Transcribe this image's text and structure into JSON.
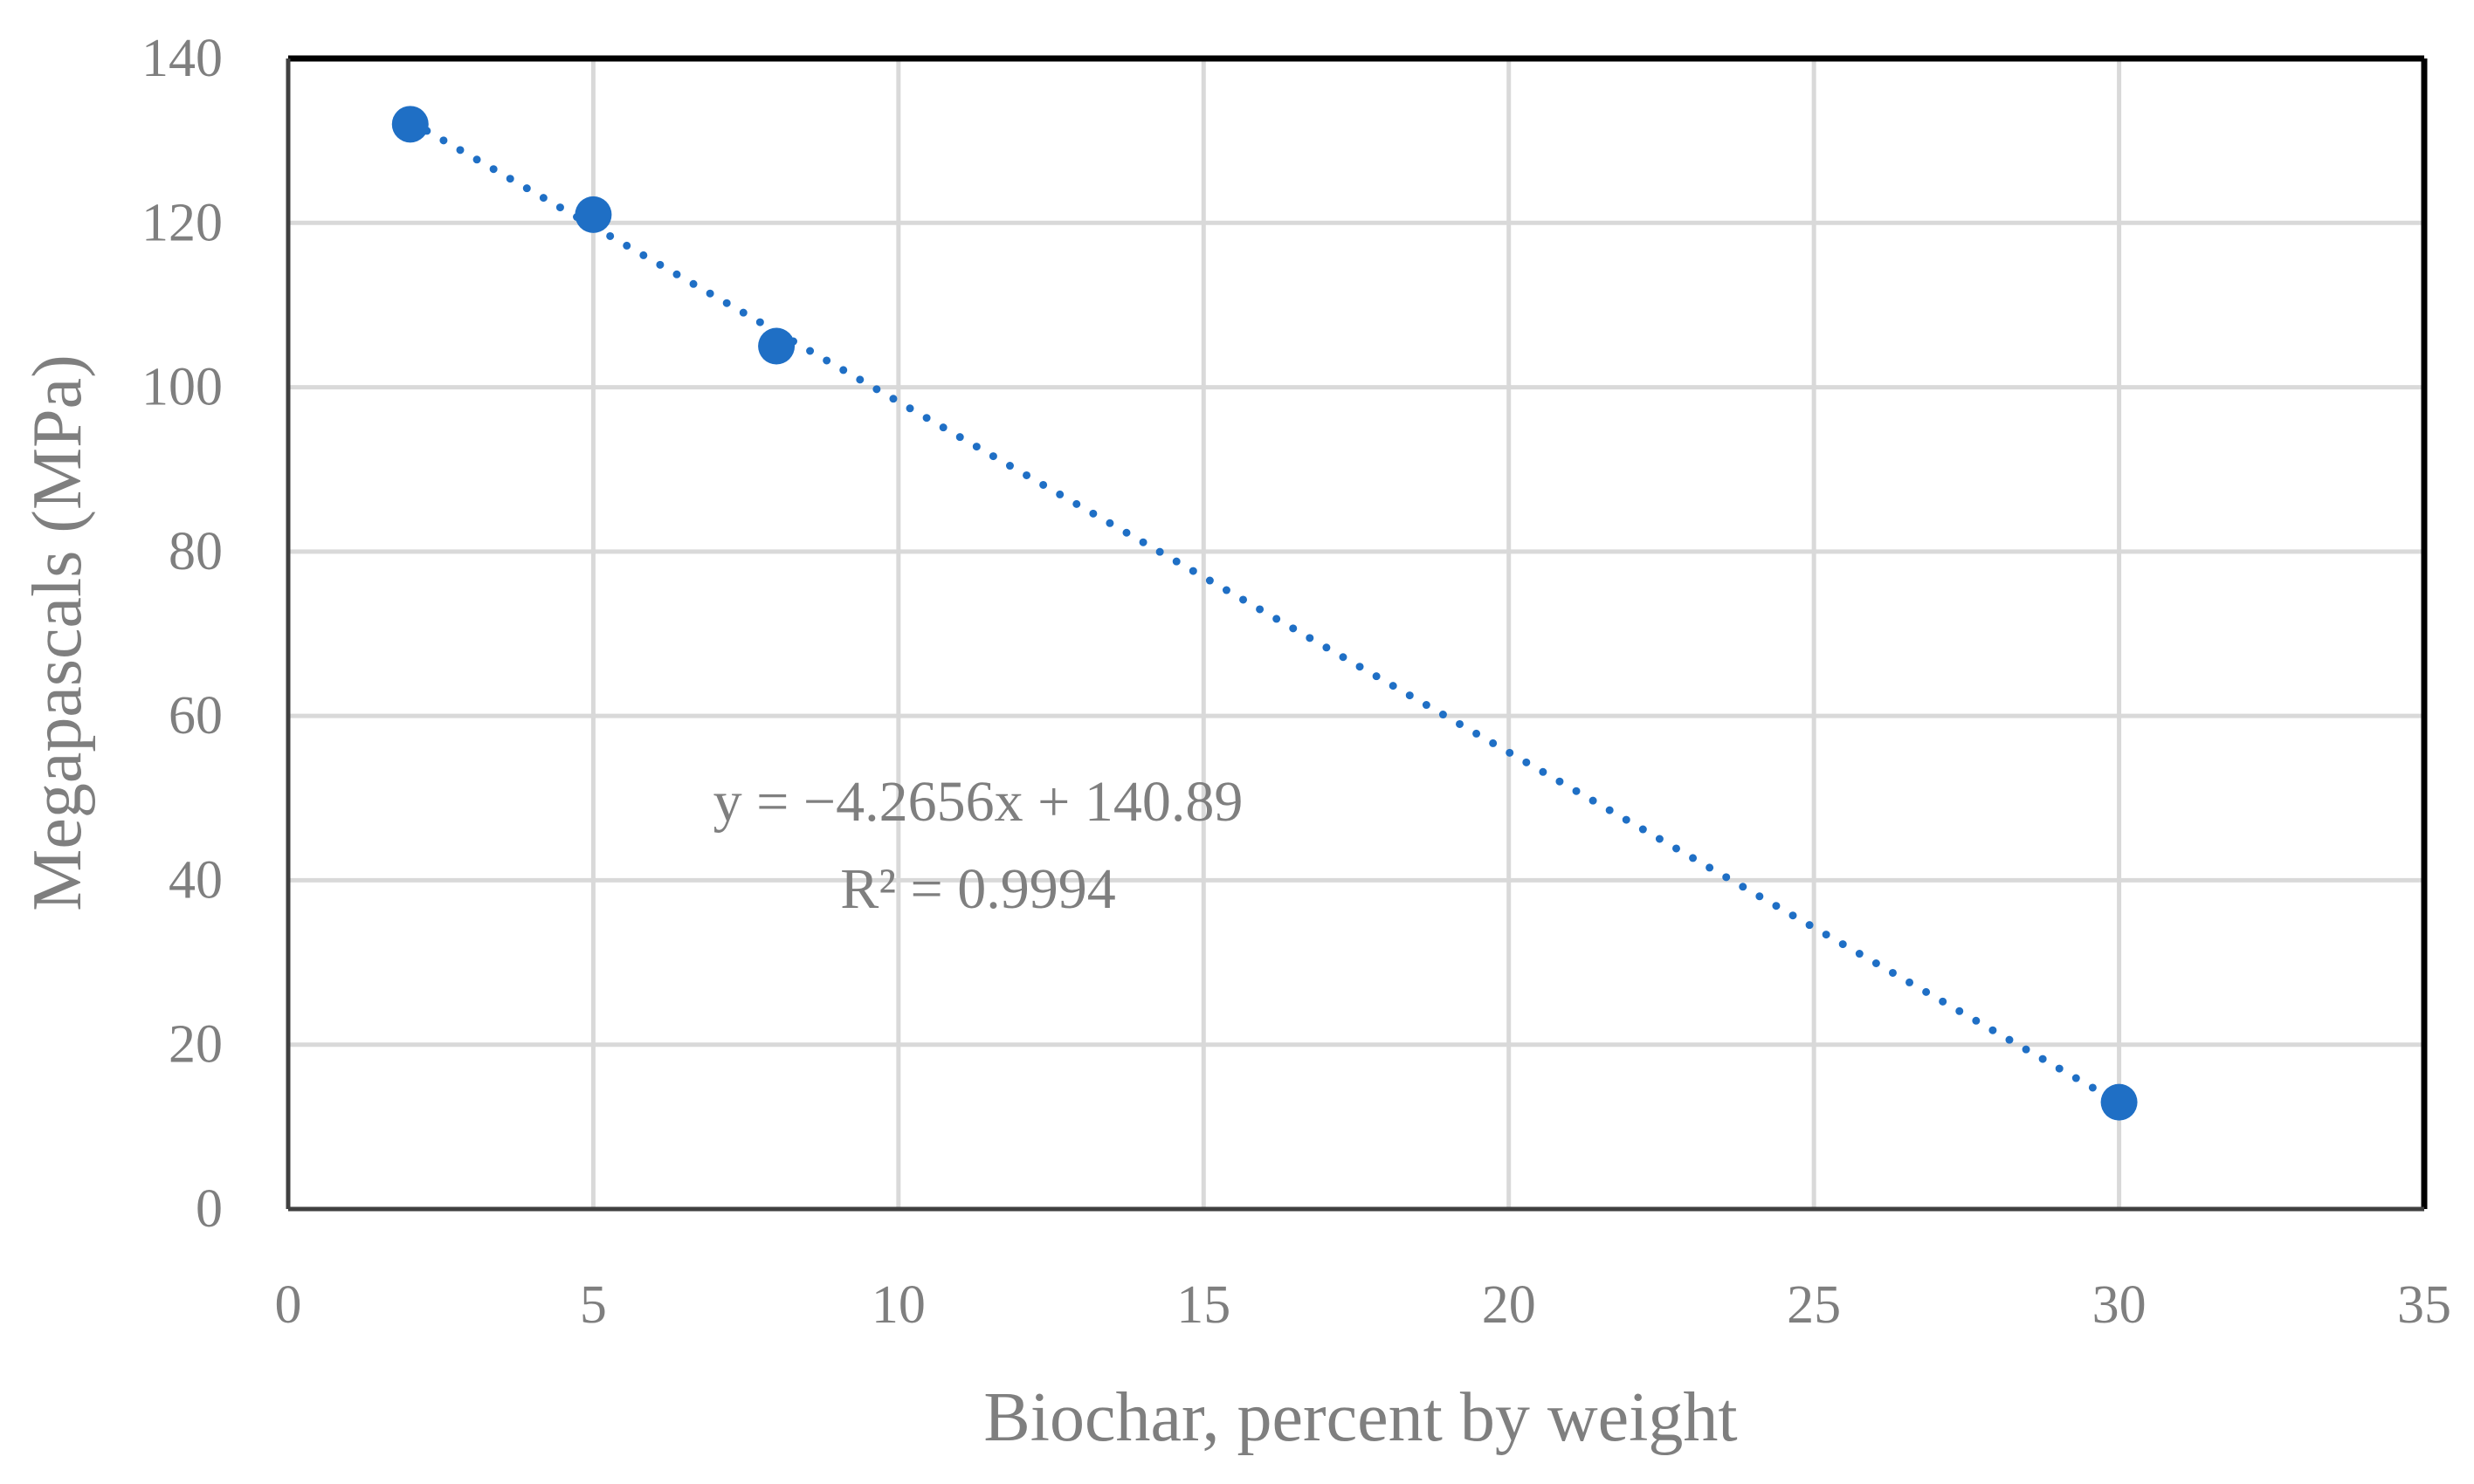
{
  "chart_data": {
    "type": "scatter",
    "xlabel": "Biochar, percent by weight",
    "ylabel": "Megapascals (MPa)",
    "xlim": [
      0,
      35
    ],
    "ylim": [
      0,
      140
    ],
    "x_ticks": [
      "0",
      "5",
      "10",
      "15",
      "20",
      "25",
      "30",
      "35"
    ],
    "y_ticks": [
      "0",
      "20",
      "40",
      "60",
      "80",
      "100",
      "120",
      "140"
    ],
    "grid": true,
    "legend": "none",
    "series": [
      {
        "points": [
          {
            "x": 2,
            "y": 132
          },
          {
            "x": 5,
            "y": 121
          },
          {
            "x": 8,
            "y": 105
          },
          {
            "x": 30,
            "y": 13
          }
        ],
        "color": "#1f6fc5"
      }
    ],
    "trendline": {
      "type": "linear",
      "style": "dotted",
      "slope": -4.2656,
      "intercept": 140.89,
      "x_range": [
        2,
        30
      ],
      "color": "#1f6fc5"
    },
    "annotations": {
      "equation": "y = −4.2656x + 140.89",
      "r_squared": "R² = 0.9994"
    }
  }
}
